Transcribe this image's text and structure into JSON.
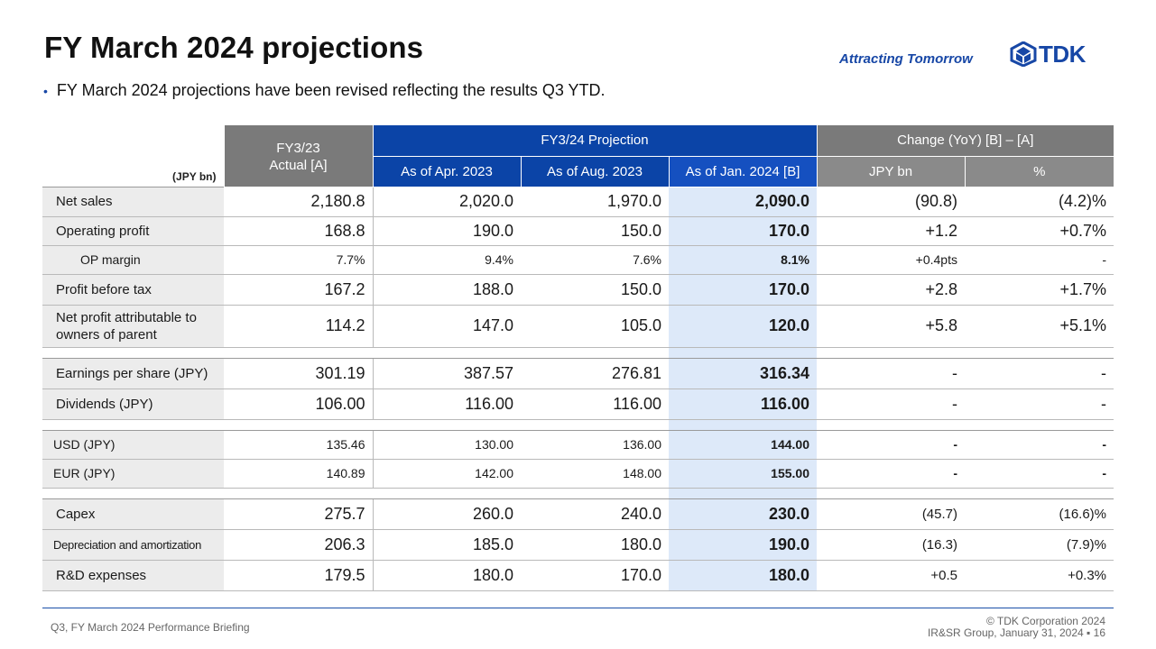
{
  "title": "FY March 2024 projections",
  "brand": {
    "tagline": "Attracting Tomorrow",
    "logo_text": "TDK",
    "brand_color": "#1747a6"
  },
  "bullet": "FY March 2024 projections have been revised reflecting the results Q3 YTD.",
  "table": {
    "unit": "(JPY bn)",
    "col_actual": "FY3/23\nActual [A]",
    "group_projection": "FY3/24 Projection",
    "group_change": "Change (YoY) [B] – [A]",
    "sub_apr": "As of Apr. 2023",
    "sub_aug": "As of Aug. 2023",
    "sub_jan": "As of Jan. 2024 [B]",
    "sub_jpy": "JPY bn",
    "sub_pct": "%",
    "rows": [
      {
        "label": "Net sales",
        "actual": "2,180.8",
        "apr": "2,020.0",
        "aug": "1,970.0",
        "jan": "2,090.0",
        "jpy": "(90.8)",
        "pct": "(4.2)%"
      },
      {
        "label": "Operating profit",
        "actual": "168.8",
        "apr": "190.0",
        "aug": "150.0",
        "jan": "170.0",
        "jpy": "+1.2",
        "pct": "+0.7%"
      },
      {
        "label": "OP margin",
        "actual": "7.7%",
        "apr": "9.4%",
        "aug": "7.6%",
        "jan": "8.1%",
        "jpy": "+0.4pts",
        "pct": "-"
      },
      {
        "label": "Profit before tax",
        "actual": "167.2",
        "apr": "188.0",
        "aug": "150.0",
        "jan": "170.0",
        "jpy": "+2.8",
        "pct": "+1.7%"
      },
      {
        "label": "Net profit attributable to owners of parent",
        "actual": "114.2",
        "apr": "147.0",
        "aug": "105.0",
        "jan": "120.0",
        "jpy": "+5.8",
        "pct": "+5.1%"
      },
      {
        "label": "Earnings per share (JPY)",
        "actual": "301.19",
        "apr": "387.57",
        "aug": "276.81",
        "jan": "316.34",
        "jpy": "-",
        "pct": "-"
      },
      {
        "label": "Dividends (JPY)",
        "actual": "106.00",
        "apr": "116.00",
        "aug": "116.00",
        "jan": "116.00",
        "jpy": "-",
        "pct": "-"
      },
      {
        "label": "USD (JPY)",
        "actual": "135.46",
        "apr": "130.00",
        "aug": "136.00",
        "jan": "144.00",
        "jpy": "-",
        "pct": "-"
      },
      {
        "label": "EUR (JPY)",
        "actual": "140.89",
        "apr": "142.00",
        "aug": "148.00",
        "jan": "155.00",
        "jpy": "-",
        "pct": "-"
      },
      {
        "label": "Capex",
        "actual": "275.7",
        "apr": "260.0",
        "aug": "240.0",
        "jan": "230.0",
        "jpy": "(45.7)",
        "pct": "(16.6)%"
      },
      {
        "label": "Depreciation and amortization",
        "actual": "206.3",
        "apr": "185.0",
        "aug": "180.0",
        "jan": "190.0",
        "jpy": "(16.3)",
        "pct": "(7.9)%"
      },
      {
        "label": "R&D expenses",
        "actual": "179.5",
        "apr": "180.0",
        "aug": "170.0",
        "jan": "180.0",
        "jpy": "+0.5",
        "pct": "+0.3%"
      }
    ]
  },
  "footer": {
    "left": "Q3, FY March 2024 Performance Briefing",
    "copyright": "© TDK Corporation 2024",
    "group_date": "IR&SR Group, January 31, 2024",
    "page": "16"
  },
  "colors": {
    "header_blue": "#0b44a7",
    "header_gray": "#7a7a7a",
    "highlight_col": "#dde9f9",
    "label_bg": "#ececec"
  }
}
